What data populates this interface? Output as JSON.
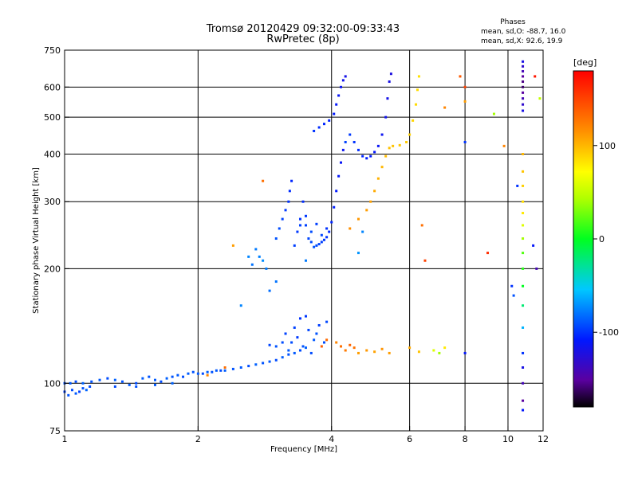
{
  "chart_data": {
    "type": "scatter",
    "title": "Tromsø 20120429 09:32:00-09:33:43",
    "subtitle": "RwPretec (8p)",
    "phases_note": {
      "title": "Phases",
      "line1": "mean, sd,O: -88.7, 16.0",
      "line2": "mean, sd,X:  92.6, 19.9"
    },
    "xlabel": "Frequency [MHz]",
    "ylabel": "Stationary phase Virtual Height [km]",
    "x_scale": "log",
    "y_scale": "log",
    "xlim": [
      1,
      12
    ],
    "ylim": [
      75,
      750
    ],
    "grid": true,
    "x_ticks": [
      "1",
      "2",
      "4",
      "6",
      "8",
      "10",
      "12"
    ],
    "x_tick_values": [
      1,
      2,
      4,
      6,
      8,
      10,
      12
    ],
    "x_grid_values": [
      2,
      4,
      6,
      8,
      10
    ],
    "y_ticks": [
      "750",
      "600",
      "500",
      "400",
      "300",
      "200",
      "100",
      "75"
    ],
    "y_tick_values": [
      750,
      600,
      500,
      400,
      300,
      200,
      100,
      75
    ],
    "y_grid_values": [
      600,
      500,
      400,
      300,
      200,
      100
    ],
    "colorbar": {
      "label": "[deg]",
      "range": [
        -180,
        180
      ],
      "ticks": [
        "100",
        "0",
        "-100"
      ],
      "tick_values": [
        100,
        0,
        -100
      ]
    },
    "series": [
      {
        "mode": "O",
        "points": [
          [
            1.0,
            95,
            -95
          ],
          [
            1.02,
            93,
            -90
          ],
          [
            1.04,
            96,
            -92
          ],
          [
            1.06,
            94,
            -88
          ],
          [
            1.08,
            95,
            -95
          ],
          [
            1.1,
            97,
            -90
          ],
          [
            1.12,
            96,
            -85
          ],
          [
            1.14,
            98,
            -92
          ],
          [
            1.0,
            100,
            -90
          ],
          [
            1.03,
            100,
            -88
          ],
          [
            1.06,
            101,
            -92
          ],
          [
            1.1,
            100,
            -85
          ],
          [
            1.15,
            101,
            -90
          ],
          [
            1.2,
            102,
            -88
          ],
          [
            1.25,
            103,
            -92
          ],
          [
            1.3,
            102,
            -86
          ],
          [
            1.35,
            101,
            -90
          ],
          [
            1.4,
            99,
            -88
          ],
          [
            1.45,
            100,
            -92
          ],
          [
            1.5,
            103,
            -87
          ],
          [
            1.55,
            104,
            -90
          ],
          [
            1.6,
            102,
            -88
          ],
          [
            1.65,
            101,
            -92
          ],
          [
            1.7,
            103,
            -86
          ],
          [
            1.75,
            104,
            -90
          ],
          [
            1.8,
            105,
            -88
          ],
          [
            1.85,
            104,
            -92
          ],
          [
            1.9,
            106,
            -87
          ],
          [
            1.95,
            107,
            -90
          ],
          [
            2.0,
            106,
            -88
          ],
          [
            2.05,
            106,
            -92
          ],
          [
            2.1,
            107,
            -86
          ],
          [
            2.15,
            107,
            -90
          ],
          [
            2.2,
            108,
            -88
          ],
          [
            2.25,
            108,
            -92
          ],
          [
            2.3,
            108,
            -87
          ],
          [
            2.4,
            109,
            -90
          ],
          [
            2.5,
            110,
            -88
          ],
          [
            2.6,
            111,
            -92
          ],
          [
            2.7,
            112,
            -86
          ],
          [
            2.8,
            113,
            -90
          ],
          [
            2.9,
            114,
            -88
          ],
          [
            3.0,
            115,
            -92
          ],
          [
            3.1,
            117,
            -87
          ],
          [
            3.2,
            119,
            -90
          ],
          [
            3.3,
            120,
            -88
          ],
          [
            3.4,
            122,
            -92
          ],
          [
            3.5,
            124,
            -86
          ],
          [
            1.45,
            98,
            -90
          ],
          [
            1.6,
            99,
            -88
          ],
          [
            1.75,
            100,
            -85
          ],
          [
            1.3,
            98,
            -92
          ],
          [
            3.15,
            135,
            -95
          ],
          [
            3.25,
            128,
            -92
          ],
          [
            3.35,
            132,
            -98
          ],
          [
            3.45,
            125,
            -90
          ],
          [
            3.55,
            138,
            -94
          ],
          [
            3.65,
            130,
            -88
          ],
          [
            3.75,
            142,
            -96
          ],
          [
            3.85,
            128,
            -92
          ],
          [
            3.4,
            148,
            -100
          ],
          [
            3.6,
            120,
            -92
          ],
          [
            3.3,
            140,
            -95
          ],
          [
            3.5,
            150,
            -98
          ],
          [
            3.7,
            135,
            -90
          ],
          [
            3.9,
            145,
            -94
          ],
          [
            3.0,
            125,
            -90
          ],
          [
            3.1,
            128,
            -92
          ],
          [
            3.2,
            122,
            -88
          ],
          [
            2.9,
            126,
            -94
          ],
          [
            2.6,
            215,
            -75
          ],
          [
            2.7,
            225,
            -78
          ],
          [
            2.8,
            210,
            -72
          ],
          [
            2.65,
            205,
            -80
          ],
          [
            2.75,
            215,
            -76
          ],
          [
            2.85,
            200,
            -78
          ],
          [
            3.0,
            240,
            -90
          ],
          [
            3.05,
            255,
            -92
          ],
          [
            3.1,
            270,
            -95
          ],
          [
            3.15,
            285,
            -98
          ],
          [
            3.2,
            300,
            -100
          ],
          [
            3.22,
            320,
            -102
          ],
          [
            3.25,
            340,
            -104
          ],
          [
            3.3,
            230,
            -96
          ],
          [
            3.35,
            250,
            -98
          ],
          [
            3.4,
            270,
            -100
          ],
          [
            3.45,
            300,
            -102
          ],
          [
            3.5,
            260,
            -96
          ],
          [
            3.55,
            240,
            -94
          ],
          [
            3.6,
            235,
            -92
          ],
          [
            3.65,
            228,
            -90
          ],
          [
            3.7,
            230,
            -92
          ],
          [
            3.75,
            232,
            -94
          ],
          [
            3.8,
            235,
            -96
          ],
          [
            3.85,
            238,
            -98
          ],
          [
            3.9,
            242,
            -100
          ],
          [
            3.95,
            250,
            -102
          ],
          [
            4.0,
            265,
            -104
          ],
          [
            4.05,
            290,
            -106
          ],
          [
            4.1,
            320,
            -108
          ],
          [
            4.15,
            350,
            -110
          ],
          [
            4.2,
            380,
            -112
          ],
          [
            4.25,
            410,
            -114
          ],
          [
            3.4,
            260,
            -95
          ],
          [
            3.6,
            250,
            -92
          ],
          [
            3.8,
            245,
            -94
          ],
          [
            3.5,
            275,
            -98
          ],
          [
            3.7,
            262,
            -96
          ],
          [
            3.9,
            255,
            -100
          ],
          [
            3.65,
            460,
            -100
          ],
          [
            3.75,
            470,
            -102
          ],
          [
            3.85,
            480,
            -104
          ],
          [
            3.95,
            490,
            -106
          ],
          [
            4.05,
            510,
            -108
          ],
          [
            4.1,
            540,
            -110
          ],
          [
            4.15,
            570,
            -112
          ],
          [
            4.2,
            600,
            -114
          ],
          [
            4.25,
            625,
            -116
          ],
          [
            4.3,
            640,
            -118
          ],
          [
            4.3,
            430,
            -95
          ],
          [
            4.4,
            450,
            -98
          ],
          [
            4.5,
            430,
            -100
          ],
          [
            4.6,
            410,
            -102
          ],
          [
            4.7,
            395,
            -104
          ],
          [
            4.8,
            390,
            -106
          ],
          [
            4.9,
            395,
            -108
          ],
          [
            5.0,
            405,
            -110
          ],
          [
            5.1,
            420,
            -112
          ],
          [
            5.2,
            450,
            -114
          ],
          [
            5.3,
            500,
            -116
          ],
          [
            5.35,
            560,
            -118
          ],
          [
            5.4,
            620,
            -120
          ],
          [
            5.45,
            650,
            -122
          ],
          [
            4.7,
            250,
            -75
          ],
          [
            4.6,
            220,
            -70
          ],
          [
            3.5,
            210,
            -78
          ],
          [
            3.0,
            185,
            -80
          ],
          [
            2.9,
            175,
            -82
          ],
          [
            2.5,
            160,
            -75
          ]
        ]
      },
      {
        "mode": "X",
        "points": [
          [
            4.1,
            128,
            120
          ],
          [
            4.2,
            125,
            130
          ],
          [
            4.3,
            122,
            125
          ],
          [
            4.4,
            126,
            135
          ],
          [
            4.5,
            124,
            128
          ],
          [
            3.9,
            130,
            132
          ],
          [
            3.8,
            125,
            138
          ],
          [
            4.6,
            120,
            110
          ],
          [
            4.8,
            122,
            112
          ],
          [
            5.0,
            121,
            108
          ],
          [
            5.2,
            123,
            114
          ],
          [
            5.4,
            120,
            110
          ],
          [
            6.0,
            124,
            105
          ],
          [
            6.3,
            121,
            95
          ],
          [
            6.8,
            122,
            60
          ],
          [
            7.0,
            120,
            40
          ],
          [
            7.2,
            124,
            80
          ],
          [
            4.4,
            255,
            115
          ],
          [
            4.6,
            270,
            112
          ],
          [
            4.8,
            285,
            110
          ],
          [
            4.9,
            300,
            108
          ],
          [
            5.0,
            320,
            105
          ],
          [
            5.1,
            345,
            102
          ],
          [
            5.2,
            370,
            100
          ],
          [
            5.3,
            395,
            98
          ],
          [
            5.4,
            415,
            96
          ],
          [
            5.5,
            420,
            95
          ],
          [
            5.7,
            422,
            94
          ],
          [
            5.9,
            430,
            92
          ],
          [
            6.0,
            450,
            90
          ],
          [
            6.1,
            490,
            88
          ],
          [
            6.2,
            540,
            86
          ],
          [
            6.25,
            590,
            85
          ],
          [
            6.3,
            640,
            84
          ],
          [
            6.4,
            260,
            130
          ],
          [
            6.5,
            210,
            150
          ],
          [
            7.8,
            640,
            140
          ],
          [
            7.2,
            530,
            120
          ],
          [
            2.4,
            230,
            110
          ],
          [
            2.8,
            340,
            130
          ],
          [
            2.3,
            110,
            130
          ],
          [
            2.1,
            105,
            120
          ]
        ]
      },
      {
        "mode": "noise",
        "points": [
          [
            10.8,
            700,
            -120
          ],
          [
            10.8,
            680,
            -130
          ],
          [
            10.8,
            660,
            -140
          ],
          [
            10.8,
            640,
            -150
          ],
          [
            10.8,
            620,
            -155
          ],
          [
            10.8,
            600,
            -160
          ],
          [
            10.8,
            580,
            -150
          ],
          [
            10.8,
            560,
            -140
          ],
          [
            10.8,
            540,
            -130
          ],
          [
            10.8,
            520,
            -120
          ],
          [
            10.8,
            400,
            100
          ],
          [
            10.8,
            360,
            95
          ],
          [
            10.8,
            330,
            90
          ],
          [
            10.8,
            300,
            85
          ],
          [
            10.8,
            280,
            80
          ],
          [
            10.8,
            260,
            60
          ],
          [
            10.8,
            240,
            40
          ],
          [
            10.8,
            220,
            20
          ],
          [
            10.8,
            200,
            10
          ],
          [
            10.8,
            180,
            0
          ],
          [
            10.8,
            160,
            -20
          ],
          [
            10.8,
            140,
            -60
          ],
          [
            10.8,
            120,
            -100
          ],
          [
            10.8,
            110,
            -120
          ],
          [
            10.8,
            100,
            -140
          ],
          [
            10.8,
            90,
            -150
          ],
          [
            10.8,
            85,
            -110
          ],
          [
            10.2,
            180,
            -100
          ],
          [
            10.3,
            170,
            -90
          ],
          [
            11.5,
            640,
            170
          ],
          [
            11.8,
            560,
            50
          ],
          [
            8.0,
            430,
            -100
          ],
          [
            8.0,
            550,
            110
          ],
          [
            8.0,
            600,
            150
          ],
          [
            8.0,
            120,
            -110
          ],
          [
            9.3,
            510,
            40
          ],
          [
            9.8,
            420,
            120
          ],
          [
            11.4,
            230,
            -110
          ],
          [
            11.6,
            200,
            -140
          ],
          [
            10.5,
            330,
            -100
          ],
          [
            9.0,
            220,
            160
          ]
        ]
      }
    ]
  }
}
